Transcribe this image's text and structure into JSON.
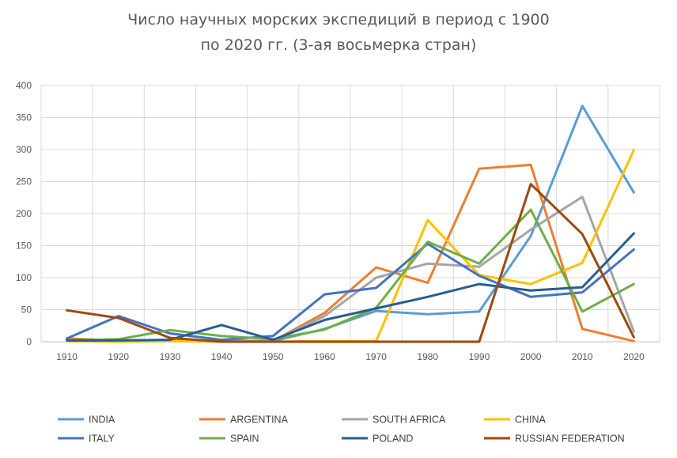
{
  "chart_data": {
    "type": "line",
    "title": "Число научных морских экспедиций в период с 1900",
    "subtitle": "по 2020 гг.  (3-ая восьмерка стран)",
    "xlabel": "",
    "ylabel": "",
    "ylim": [
      0,
      400
    ],
    "yticks": [
      0,
      50,
      100,
      150,
      200,
      250,
      300,
      350,
      400
    ],
    "categories": [
      "1910",
      "1920",
      "1930",
      "1940",
      "1950",
      "1960",
      "1970",
      "1980",
      "1990",
      "2000",
      "2010",
      "2020"
    ],
    "grid": true,
    "legend_position": "bottom",
    "series": [
      {
        "name": "INDIA",
        "color": "#5B9BD5",
        "values": [
          3,
          2,
          2,
          1,
          1,
          20,
          48,
          43,
          47,
          165,
          368,
          233
        ]
      },
      {
        "name": "ARGENTINA",
        "color": "#ED7D31",
        "values": [
          5,
          2,
          3,
          1,
          1,
          45,
          116,
          92,
          270,
          276,
          20,
          1
        ]
      },
      {
        "name": "SOUTH AFRICA",
        "color": "#A5A5A5",
        "values": [
          2,
          1,
          2,
          2,
          1,
          40,
          100,
          122,
          117,
          175,
          226,
          16
        ]
      },
      {
        "name": "CHINA",
        "color": "#FFC000",
        "values": [
          1,
          0,
          1,
          0,
          0,
          1,
          1,
          190,
          104,
          90,
          123,
          299
        ]
      },
      {
        "name": "ITALY",
        "color": "#4472C4",
        "values": [
          5,
          40,
          13,
          3,
          9,
          74,
          84,
          153,
          103,
          70,
          77,
          144
        ]
      },
      {
        "name": "SPAIN",
        "color": "#70AD47",
        "values": [
          2,
          4,
          18,
          9,
          4,
          19,
          53,
          156,
          122,
          206,
          47,
          90
        ]
      },
      {
        "name": "POLAND",
        "color": "#255E91",
        "values": [
          2,
          2,
          3,
          26,
          3,
          34,
          52,
          70,
          90,
          80,
          85,
          169
        ]
      },
      {
        "name": "RUSSIAN FEDERATION",
        "color": "#9E480E",
        "values": [
          49,
          37,
          6,
          0,
          0,
          0,
          0,
          0,
          0,
          246,
          168,
          7
        ]
      }
    ]
  }
}
